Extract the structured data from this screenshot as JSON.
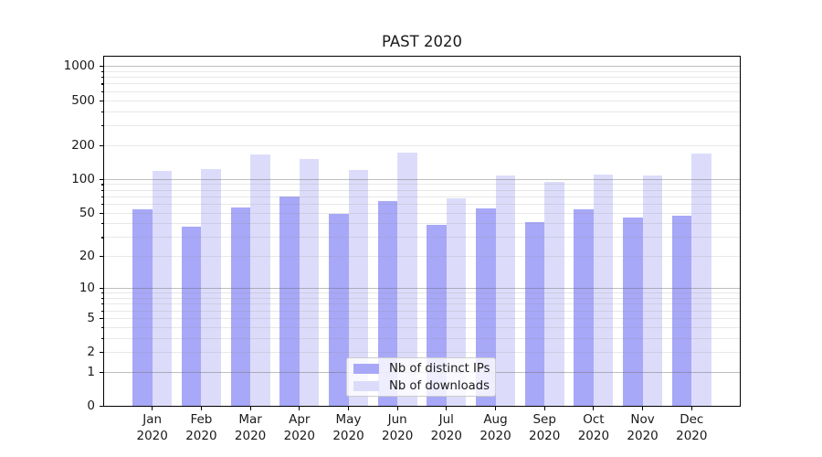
{
  "figure": {
    "background": "#ffffff"
  },
  "chart_data": {
    "type": "bar",
    "title": "PAST 2020",
    "categories": [
      "Jan",
      "Feb",
      "Mar",
      "Apr",
      "May",
      "Jun",
      "Jul",
      "Aug",
      "Sep",
      "Oct",
      "Nov",
      "Dec"
    ],
    "category_year": "2020",
    "series": [
      {
        "name": "Nb of distinct IPs",
        "color": "#a8a8f8",
        "values": [
          54,
          37,
          56,
          70,
          49,
          63,
          39,
          55,
          41,
          54,
          45,
          47
        ]
      },
      {
        "name": "Nb of downloads",
        "color": "#dcdcfa",
        "values": [
          118,
          122,
          165,
          150,
          120,
          172,
          67,
          107,
          94,
          109,
          108,
          168
        ]
      }
    ],
    "xlabel": "",
    "ylabel": "",
    "yscale": "log1p",
    "ylim": [
      0,
      1300
    ],
    "ytick_labels": [
      0,
      1,
      2,
      5,
      10,
      20,
      50,
      100,
      200,
      500,
      1000
    ],
    "major_gridlines": [
      1,
      10,
      100,
      1000
    ],
    "minor_gridlines": [
      2,
      3,
      4,
      5,
      6,
      7,
      8,
      9,
      20,
      30,
      40,
      50,
      60,
      70,
      80,
      90,
      200,
      300,
      400,
      500,
      600,
      700,
      800,
      900
    ],
    "grid": true,
    "legend_position": "lower-center"
  }
}
